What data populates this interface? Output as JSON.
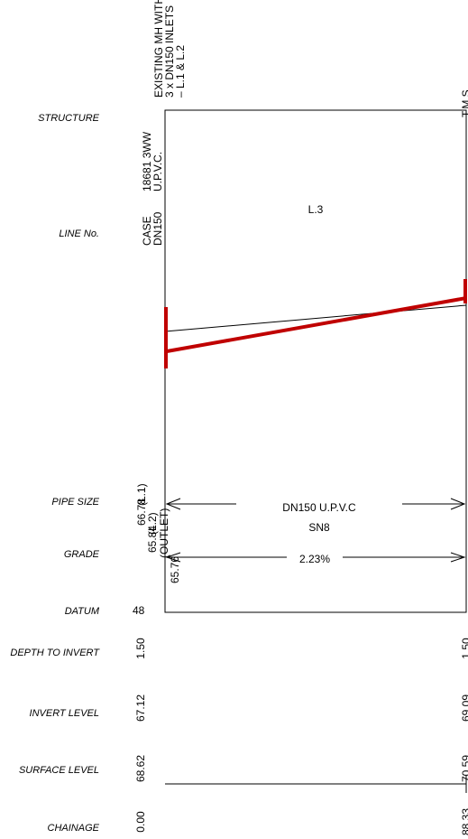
{
  "labels": {
    "structure": "STRUCTURE",
    "line_no": "LINE No.",
    "pipe_size": "PIPE SIZE",
    "grade": "GRADE",
    "datum": "DATUM",
    "depth_to_invert": "DEPTH TO INVERT",
    "invert_level": "INVERT LEVEL",
    "surface_level": "SURFACE LEVEL",
    "chainage": "CHAINAGE"
  },
  "structure": {
    "start": [
      "EXISTING MH WITH",
      "3 x DN150 INLETS",
      "– L.1 & L.2"
    ],
    "end": "T.M.S"
  },
  "line": {
    "id": "L.3",
    "case": [
      "CASE",
      "DN150"
    ],
    "pipe_ref": [
      "18681 3WW",
      "U.P.V.C."
    ]
  },
  "pipe_size": {
    "text": "DN150 U.P.V.C",
    "class": "SN8"
  },
  "grade": "2.23%",
  "levels": [
    {
      "label": "(L.1)",
      "value": "66.78"
    },
    {
      "label": "(L.2)",
      "value": "65.84"
    },
    {
      "label": "(OUTLET)",
      "value": "65.76"
    }
  ],
  "datum": "48",
  "start": {
    "depth": "1.50",
    "invert": "67.12",
    "surface": "68.62",
    "chainage": "0.00"
  },
  "end": {
    "depth": "1.50",
    "invert": "69.09",
    "surface": "70.59",
    "chainage": "88.33"
  }
}
